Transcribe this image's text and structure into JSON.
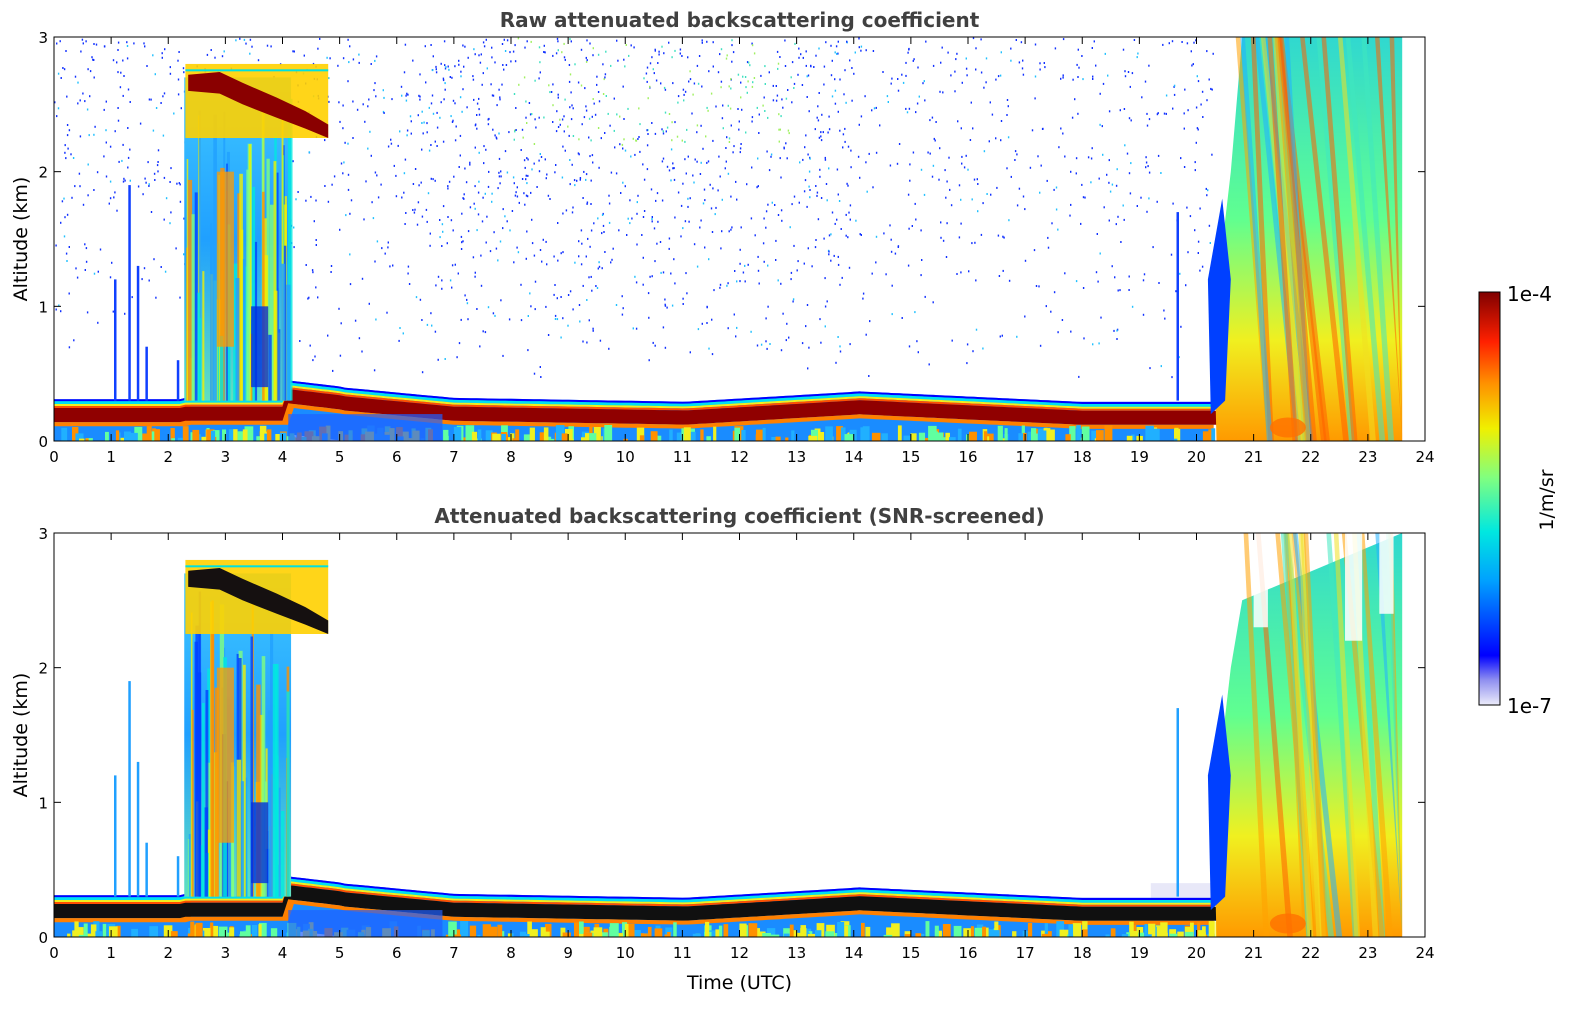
{
  "chart_data": [
    {
      "type": "heatmap",
      "title": "Raw attenuated backscattering coefficient",
      "xlabel": "",
      "ylabel": "Altitude (km)",
      "xlim": [
        0,
        24
      ],
      "ylim": [
        0,
        3
      ],
      "xticks": [
        "0",
        "1",
        "2",
        "3",
        "4",
        "5",
        "6",
        "7",
        "8",
        "9",
        "10",
        "11",
        "12",
        "13",
        "14",
        "15",
        "16",
        "17",
        "18",
        "19",
        "20",
        "21",
        "22",
        "23",
        "24"
      ],
      "yticks": [
        "0",
        "1",
        "2",
        "3"
      ],
      "screened": false,
      "features": [
        {
          "name": "boundary-layer-peak",
          "t_start": 0,
          "t_end": 21,
          "alt_km": [
            0.15,
            0.25
          ],
          "level": "1e-4"
        },
        {
          "name": "elevated-layer",
          "t_start": 2.3,
          "t_end": 4.8,
          "alt_km": [
            2.3,
            2.75
          ],
          "level": "1e-4"
        },
        {
          "name": "precipitation-fallstreaks",
          "t_start": 20.3,
          "t_end": 23.6,
          "alt_km": [
            0,
            3
          ]
        }
      ]
    },
    {
      "type": "heatmap",
      "title": "Attenuated backscattering coefficient (SNR-screened)",
      "xlabel": "Time (UTC)",
      "ylabel": "Altitude (km)",
      "xlim": [
        0,
        24
      ],
      "ylim": [
        0,
        3
      ],
      "xticks": [
        "0",
        "1",
        "2",
        "3",
        "4",
        "5",
        "6",
        "7",
        "8",
        "9",
        "10",
        "11",
        "12",
        "13",
        "14",
        "15",
        "16",
        "17",
        "18",
        "19",
        "20",
        "21",
        "22",
        "23",
        "24"
      ],
      "yticks": [
        "0",
        "1",
        "2",
        "3"
      ],
      "screened": true
    }
  ],
  "colorbar": {
    "label": "1/m/sr",
    "min_label": "1e-7",
    "max_label": "1e-4",
    "colors": [
      "#e8e8f8",
      "#0000ff",
      "#00a0ff",
      "#00e8e0",
      "#80ff80",
      "#f0f000",
      "#ff9000",
      "#ff2000",
      "#800000"
    ]
  }
}
